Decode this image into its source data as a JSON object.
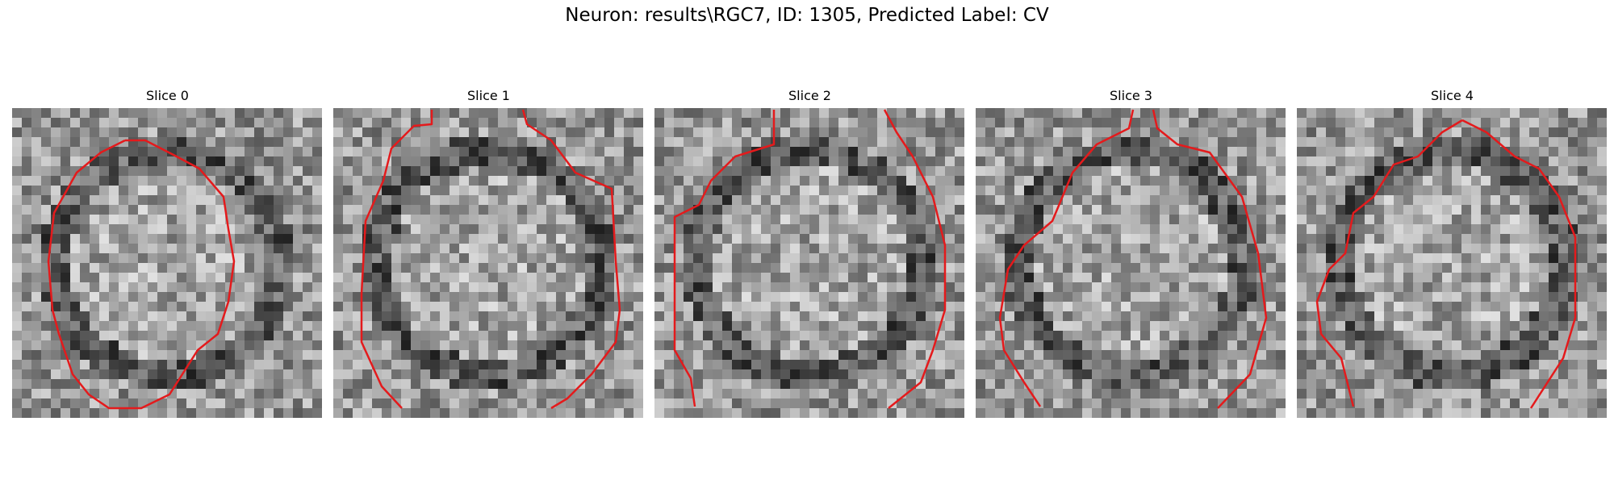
{
  "figure": {
    "title": "Neuron: results\\RGC7, ID: 1305, Predicted Label: CV",
    "contour_color": "#e41a1c"
  },
  "panels": [
    {
      "title": "Slice 0",
      "seed": 11,
      "contour": "ellipse"
    },
    {
      "title": "Slice 1",
      "seed": 23,
      "contour": "open-top"
    },
    {
      "title": "Slice 2",
      "seed": 37,
      "contour": "open-top-left"
    },
    {
      "title": "Slice 3",
      "seed": 53,
      "contour": "open-top-center"
    },
    {
      "title": "Slice 4",
      "seed": 71,
      "contour": "peak-top"
    }
  ]
}
